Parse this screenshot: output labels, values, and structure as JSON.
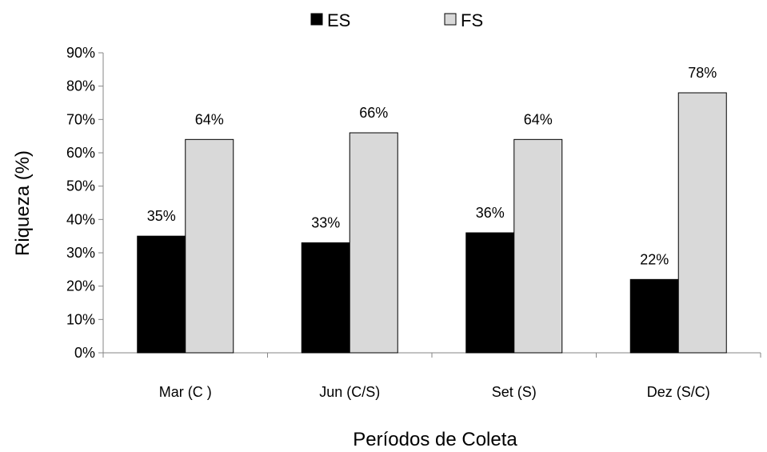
{
  "chart_data": {
    "type": "bar",
    "categories": [
      "Mar (C )",
      "Jun (C/S)",
      "Set (S)",
      "Dez (S/C)"
    ],
    "series": [
      {
        "name": "ES",
        "values": [
          35,
          33,
          36,
          22
        ],
        "labels": [
          "35%",
          "33%",
          "36%",
          "22%"
        ],
        "color": "#000000"
      },
      {
        "name": "FS",
        "values": [
          64,
          66,
          64,
          78
        ],
        "labels": [
          "64%",
          "66%",
          "64%",
          "78%"
        ],
        "color": "#d9d9d9"
      }
    ],
    "ylim": [
      0,
      90
    ],
    "yticks": [
      0,
      10,
      20,
      30,
      40,
      50,
      60,
      70,
      80,
      90
    ],
    "ytick_labels": [
      "0%",
      "10%",
      "20%",
      "30%",
      "40%",
      "50%",
      "60%",
      "70%",
      "80%",
      "90%"
    ],
    "xlabel": "Períodos de Coleta",
    "ylabel": "Riqueza (%)",
    "grid": false,
    "legend": "top-center"
  }
}
